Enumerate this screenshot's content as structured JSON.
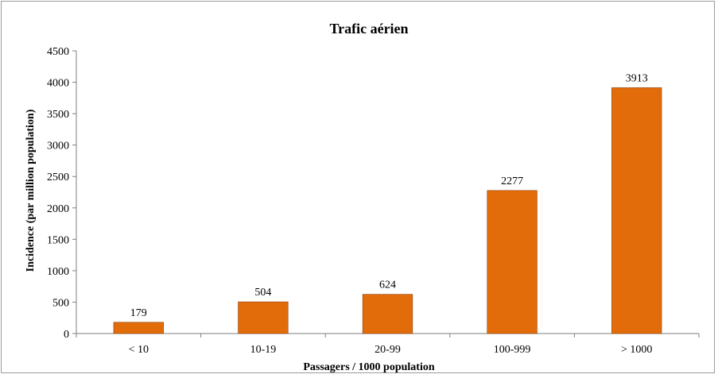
{
  "chart_data": {
    "type": "bar",
    "title": "Trafic aérien",
    "xlabel": "Passagers  / 1000 population",
    "ylabel": "Incidence  (par million population)",
    "categories": [
      "< 10",
      "10-19",
      "20-99",
      "100-999",
      "> 1000"
    ],
    "values": [
      179,
      504,
      624,
      2277,
      3913
    ],
    "ylim": [
      0,
      4500
    ],
    "yticks": [
      0,
      500,
      1000,
      1500,
      2000,
      2500,
      3000,
      3500,
      4000,
      4500
    ],
    "grid": false,
    "legend": "none",
    "colors": {
      "bar": "#E36C0A",
      "bar_stroke": "#8a3d06",
      "axis": "#7f7f7f"
    }
  }
}
